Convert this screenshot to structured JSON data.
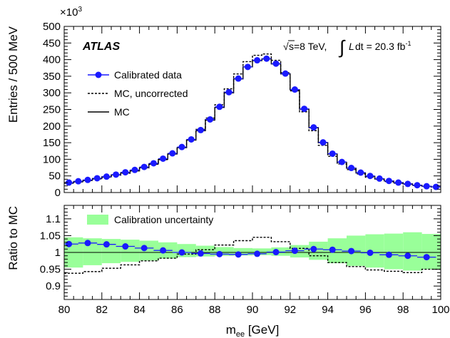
{
  "chart_data": [
    {
      "type": "line",
      "panel": "main",
      "ylabel": "Entries / 500 MeV",
      "y_multiplier": "×10",
      "y_multiplier_exp": "3",
      "ylim": [
        0,
        500
      ],
      "yticks": [
        0,
        50,
        100,
        150,
        200,
        250,
        300,
        350,
        400,
        450,
        500
      ],
      "xlim": [
        80,
        100
      ],
      "annotations": {
        "experiment": "ATLAS",
        "sqrt": "√",
        "energy": "s=8 TeV,",
        "integral": "∫",
        "lumi_L": "L",
        "lumi_dt": "dt = 20.3 fb",
        "lumi_exp": "-1"
      },
      "legend": [
        {
          "label": "Calibrated data",
          "style": "marker"
        },
        {
          "label": "MC, uncorrected",
          "style": "dashed"
        },
        {
          "label": "MC",
          "style": "solid"
        }
      ],
      "series": [
        {
          "name": "Calibrated data",
          "x": [
            80.25,
            80.75,
            81.25,
            81.75,
            82.25,
            82.75,
            83.25,
            83.75,
            84.25,
            84.75,
            85.25,
            85.75,
            86.25,
            86.75,
            87.25,
            87.75,
            88.25,
            88.75,
            89.25,
            89.75,
            90.25,
            90.75,
            91.25,
            91.75,
            92.25,
            92.75,
            93.25,
            93.75,
            94.25,
            94.75,
            95.25,
            95.75,
            96.25,
            96.75,
            97.25,
            97.75,
            98.25,
            98.75,
            99.25,
            99.75
          ],
          "values": [
            30,
            34,
            38,
            43,
            48,
            54,
            61,
            68,
            77,
            88,
            102,
            118,
            137,
            160,
            188,
            220,
            258,
            302,
            343,
            378,
            398,
            403,
            388,
            358,
            310,
            252,
            196,
            151,
            117,
            92,
            74,
            60,
            50,
            42,
            35,
            30,
            26,
            22,
            19,
            17
          ]
        },
        {
          "name": "MC",
          "values": [
            29,
            33,
            37,
            42,
            47,
            53,
            59,
            66,
            75,
            86,
            100,
            116,
            135,
            158,
            186,
            218,
            256,
            300,
            342,
            378,
            397,
            402,
            387,
            357,
            309,
            251,
            195,
            150,
            116,
            91,
            73,
            59,
            49,
            41,
            35,
            30,
            26,
            22,
            19,
            17
          ]
        },
        {
          "name": "MC, uncorrected",
          "values": [
            28,
            32,
            36,
            41,
            46,
            52,
            58,
            65,
            74,
            85,
            99,
            116,
            136,
            160,
            190,
            224,
            264,
            312,
            357,
            394,
            413,
            417,
            398,
            361,
            306,
            243,
            186,
            142,
            109,
            86,
            69,
            56,
            46,
            39,
            33,
            28,
            25,
            21,
            18,
            16
          ]
        }
      ]
    },
    {
      "type": "line",
      "panel": "ratio",
      "ylabel": "Ratio to MC",
      "xlabel": "m",
      "xlabel_sub": "ee",
      "xlabel_unit": " [GeV]",
      "ylim": [
        0.86,
        1.14
      ],
      "yticks": [
        0.9,
        0.95,
        1,
        1.05,
        1.1
      ],
      "ytick_labels": [
        "0.9",
        "0.95",
        "1",
        "1.05",
        "1.1"
      ],
      "xlim": [
        80,
        100
      ],
      "xticks": [
        80,
        82,
        84,
        86,
        88,
        90,
        92,
        94,
        96,
        98,
        100
      ],
      "legend": [
        {
          "label": "Calibration uncertainty",
          "style": "band"
        }
      ],
      "colors": {
        "data": "#1a1aff",
        "band": "#99ff99",
        "mc": "#000000"
      },
      "series": [
        {
          "name": "Calibrated data",
          "x": [
            80.25,
            81.25,
            82.25,
            83.25,
            84.25,
            85.25,
            86.25,
            87.25,
            88.25,
            89.25,
            90.25,
            91.25,
            92.25,
            93.25,
            94.25,
            95.25,
            96.25,
            97.25,
            98.25,
            99.25
          ],
          "values": [
            1.025,
            1.028,
            1.024,
            1.018,
            1.013,
            1.006,
            1.0,
            0.997,
            0.995,
            0.994,
            0.996,
            1.001,
            1.005,
            1.01,
            1.008,
            1.004,
            0.999,
            0.993,
            0.99,
            0.986
          ],
          "xerr": 0.5
        },
        {
          "name": "MC, uncorrected",
          "edges": [
            80,
            81,
            82,
            83,
            84,
            85,
            86,
            87,
            88,
            89,
            90,
            91,
            92,
            93,
            94,
            95,
            96,
            97,
            98,
            99,
            100
          ],
          "values": [
            0.938,
            0.943,
            0.953,
            0.963,
            0.975,
            0.983,
            0.995,
            1.008,
            1.022,
            1.035,
            1.045,
            1.032,
            1.012,
            0.99,
            0.97,
            0.958,
            0.948,
            0.944,
            0.94,
            0.95
          ]
        },
        {
          "name": "Calibration uncertainty",
          "edges": [
            80,
            81,
            82,
            83,
            84,
            85,
            86,
            87,
            88,
            89,
            90,
            91,
            92,
            93,
            94,
            95,
            96,
            97,
            98,
            99,
            100
          ],
          "lower": [
            0.955,
            0.962,
            0.968,
            0.972,
            0.976,
            0.982,
            0.986,
            0.988,
            0.99,
            0.991,
            0.992,
            0.99,
            0.985,
            0.978,
            0.968,
            0.96,
            0.955,
            0.95,
            0.946,
            0.95
          ],
          "upper": [
            1.045,
            1.042,
            1.04,
            1.038,
            1.035,
            1.03,
            1.025,
            1.02,
            1.016,
            1.013,
            1.012,
            1.015,
            1.022,
            1.032,
            1.042,
            1.05,
            1.054,
            1.056,
            1.06,
            1.055
          ]
        }
      ]
    }
  ]
}
